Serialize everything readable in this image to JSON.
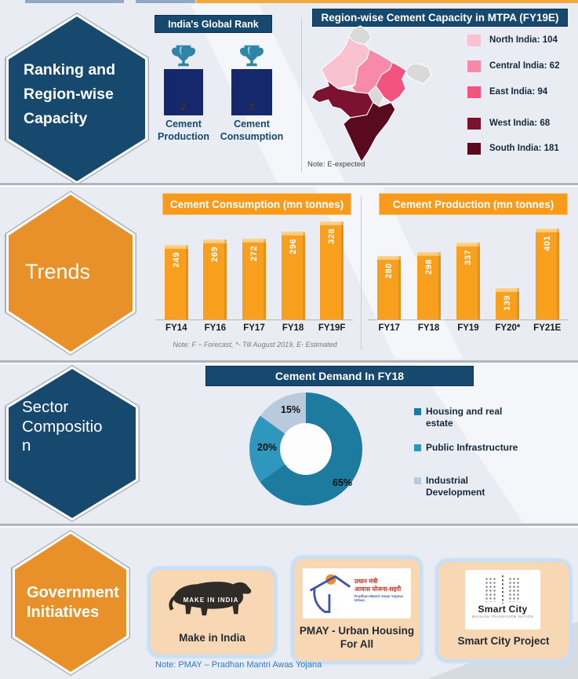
{
  "sections": {
    "ranking": {
      "hex_label": "Ranking and Region-wise Capacity",
      "rank_panel": {
        "title": "India's Global Rank",
        "items": [
          {
            "label": "Cement Production",
            "rank": "2"
          },
          {
            "label": "Cement Consumption",
            "rank": "2"
          }
        ]
      },
      "map_panel": {
        "title": "Region-wise Cement Capacity in MTPA (FY19E)",
        "note": "Note: E-expected",
        "legend": [
          {
            "label": "North India: 104",
            "color": "#F9C2D0"
          },
          {
            "label": "Central India: 62",
            "color": "#F78AA8"
          },
          {
            "label": "East India: 94",
            "color": "#F2547F"
          },
          {
            "label": "West India: 68",
            "color": "#7C1230"
          },
          {
            "label": "South India: 181",
            "color": "#5A0A1F"
          }
        ],
        "other_region_color": "#D9D9D9"
      }
    },
    "trends": {
      "hex_label": "Trends",
      "note": "Note: F ~ Forecast, *- Till August 2019, E- Estimated"
    },
    "sector": {
      "hex_label": "Sector Composition"
    },
    "government": {
      "hex_label": "Government Initiatives",
      "note": "Note: PMAY – Pradhan Mantri Awas Yojana",
      "cards": [
        {
          "label": "Make in India",
          "logo_text": "MAKE IN INDIA"
        },
        {
          "label": "PMAY - Urban Housing For All",
          "logo_text_hi_1": "प्रधान मंत्री",
          "logo_text_hi_2": "आवास योजना-शहरी",
          "logo_caption": "Pradhan Mantri Awas Yojana-Urban"
        },
        {
          "label": "Smart City Project",
          "logo_text": "Smart City",
          "logo_caption": "MISSION TRANSFORM NATION"
        }
      ]
    }
  },
  "chart_data": [
    {
      "type": "bar",
      "title": "Cement Consumption (mn tonnes)",
      "categories": [
        "FY14",
        "FY16",
        "FY17",
        "FY18",
        "FY19F"
      ],
      "values": [
        249,
        269,
        272,
        296,
        328
      ],
      "bar_color": "#F8A01D",
      "note": "Note: F ~ Forecast, *- Till August 2019, E- Estimated"
    },
    {
      "type": "bar",
      "title": "Cement Production (mn tonnes)",
      "categories": [
        "FY17",
        "FY18",
        "FY19",
        "FY20*",
        "FY21E"
      ],
      "values": [
        280,
        298,
        337,
        139,
        401
      ],
      "bar_color": "#F8A01D"
    },
    {
      "type": "donut",
      "title": "Cement Demand In FY18",
      "labels": [
        "Housing and real estate",
        "Public Infrastructure",
        "Industrial Development"
      ],
      "values": [
        65,
        20,
        15
      ],
      "value_labels": [
        "65%",
        "20%",
        "15%"
      ],
      "colors": [
        "#1D7BA0",
        "#2F97BD",
        "#B9CADC"
      ],
      "legend_position": "right"
    }
  ]
}
